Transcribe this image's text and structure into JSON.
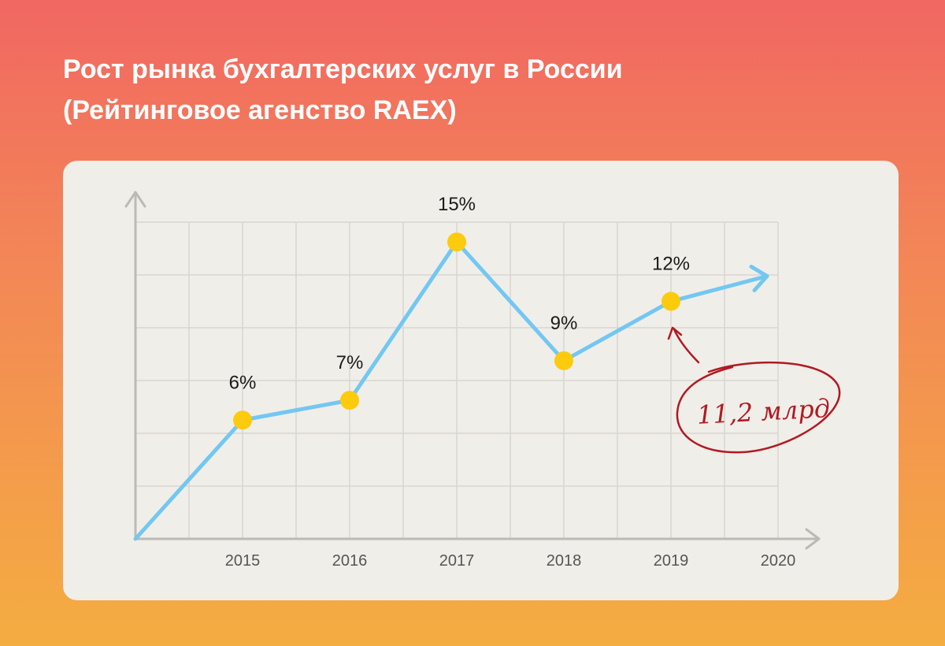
{
  "title": {
    "line1": "Рост рынка бухгалтерских услуг в России",
    "line2": "(Рейтинговое агенство RAEX)"
  },
  "colors": {
    "line": "#73c7f2",
    "point": "#fccb0e",
    "grid": "#d9d6d1",
    "axis": "#bdbab5",
    "annotation": "#b01a22"
  },
  "chart_data": {
    "type": "line",
    "x_ticks": [
      "2015",
      "2016",
      "2017",
      "2018",
      "2019",
      "2020"
    ],
    "series": [
      {
        "values": [
          {
            "x": "2015",
            "y": 6,
            "label": "6%"
          },
          {
            "x": "2016",
            "y": 7,
            "label": "7%"
          },
          {
            "x": "2017",
            "y": 15,
            "label": "15%"
          },
          {
            "x": "2018",
            "y": 9,
            "label": "9%"
          },
          {
            "x": "2019",
            "y": 12,
            "label": "12%"
          }
        ]
      }
    ],
    "ylim": [
      0,
      16
    ],
    "grid": true,
    "arrow_trend": "up-after-2019",
    "annotation": {
      "text": "11,2 млрд",
      "target": "2019"
    }
  }
}
